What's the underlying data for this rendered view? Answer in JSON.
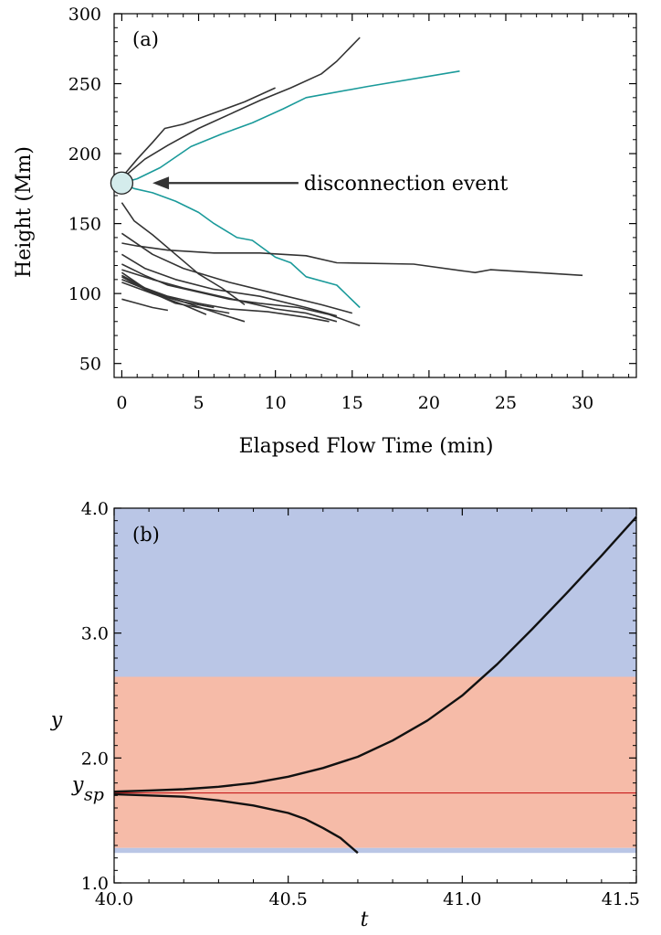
{
  "chart_data": [
    {
      "type": "line",
      "panel_label": "(a)",
      "xlabel": "Elapsed Flow Time (min)",
      "ylabel": "Height (Mm)",
      "xlim": [
        -0.5,
        33.5
      ],
      "ylim": [
        40,
        300
      ],
      "xticks": [
        0,
        5,
        10,
        15,
        20,
        25,
        30
      ],
      "yticks": [
        50,
        100,
        150,
        200,
        250,
        300
      ],
      "grid": false,
      "colors": {
        "dark": "#333333",
        "teal": "#1a9a9a",
        "marker_fill": "#d4ecec"
      },
      "annotation": {
        "text": "disconnection event",
        "arrow_tip": [
          2,
          179
        ],
        "arrow_tail": [
          11.5,
          179
        ]
      },
      "marker": {
        "x": 0,
        "y": 179
      },
      "series": [
        {
          "color": "teal",
          "x": [
            0,
            1,
            2.5,
            4.5,
            6.5,
            8.5,
            10.5,
            12,
            16,
            22
          ],
          "y": [
            179,
            182,
            190,
            205,
            214,
            222,
            232,
            240,
            248,
            259
          ]
        },
        {
          "color": "teal",
          "x": [
            0,
            0.8,
            2,
            3.5,
            5,
            6,
            7.5,
            8.5,
            10,
            11,
            12,
            14,
            15.5
          ],
          "y": [
            179,
            175,
            172,
            166,
            158,
            150,
            140,
            138,
            126,
            122,
            112,
            106,
            90
          ]
        },
        {
          "color": "dark",
          "x": [
            0,
            1.5,
            3,
            5,
            7,
            9,
            11,
            13,
            14,
            15.5
          ],
          "y": [
            182,
            196,
            206,
            218,
            228,
            238,
            247,
            257,
            266,
            283
          ]
        },
        {
          "color": "dark",
          "x": [
            0,
            1,
            2,
            2.8,
            4,
            6.5,
            8,
            10
          ],
          "y": [
            183,
            196,
            208,
            218,
            221,
            231,
            237,
            247
          ]
        },
        {
          "color": "dark",
          "x": [
            0,
            1,
            3,
            6,
            9,
            12,
            14,
            19,
            23,
            24,
            30
          ],
          "y": [
            136,
            134,
            131,
            129,
            129,
            127,
            122,
            121,
            115,
            117,
            113
          ]
        },
        {
          "color": "dark",
          "x": [
            0,
            0.8,
            2,
            3.5,
            5,
            6.5,
            8
          ],
          "y": [
            165,
            152,
            142,
            128,
            114,
            104,
            92
          ]
        },
        {
          "color": "dark",
          "x": [
            0,
            2,
            4,
            7,
            10,
            13,
            15
          ],
          "y": [
            143,
            128,
            118,
            108,
            100,
            92,
            86
          ]
        },
        {
          "color": "dark",
          "x": [
            0,
            1.5,
            3.5,
            6,
            9,
            12,
            14
          ],
          "y": [
            128,
            118,
            110,
            103,
            98,
            90,
            84
          ]
        },
        {
          "color": "dark",
          "x": [
            0,
            1.5,
            3,
            5,
            7,
            9,
            11.5,
            13.5,
            15.5
          ],
          "y": [
            121,
            113,
            106,
            101,
            96,
            93,
            90,
            85,
            77
          ]
        },
        {
          "color": "dark",
          "x": [
            0,
            2,
            4,
            6,
            8,
            10,
            12,
            14
          ],
          "y": [
            117,
            110,
            104,
            99,
            94,
            89,
            86,
            80
          ]
        },
        {
          "color": "dark",
          "x": [
            0,
            1.5,
            3,
            5,
            7,
            9.5,
            12,
            13.5
          ],
          "y": [
            113,
            104,
            98,
            93,
            89,
            87,
            83,
            80
          ]
        },
        {
          "color": "dark",
          "x": [
            0,
            2,
            4,
            5.5
          ],
          "y": [
            115,
            100,
            92,
            85
          ]
        },
        {
          "color": "dark",
          "x": [
            0,
            2,
            4,
            6.5,
            8
          ],
          "y": [
            110,
            101,
            94,
            85,
            80
          ]
        },
        {
          "color": "dark",
          "x": [
            0,
            1.5,
            3.5,
            5.5,
            7
          ],
          "y": [
            112,
            103,
            93,
            89,
            86
          ]
        },
        {
          "color": "dark",
          "x": [
            0,
            1,
            2,
            3
          ],
          "y": [
            96,
            93,
            90,
            88
          ]
        },
        {
          "color": "dark",
          "x": [
            0,
            2,
            4,
            6
          ],
          "y": [
            108,
            100,
            94,
            90
          ]
        }
      ]
    },
    {
      "type": "line",
      "panel_label": "(b)",
      "xlabel": "t",
      "ylabel": "y",
      "special_ytick": {
        "main": "y",
        "sub": "sp",
        "value": 1.72
      },
      "xlim": [
        40.0,
        41.5
      ],
      "ylim": [
        1.0,
        4.0
      ],
      "xticks": [
        40.0,
        40.5,
        41.0,
        41.5
      ],
      "xtick_labels": [
        "40.0",
        "40.5",
        "41.0",
        "41.5"
      ],
      "yticks": [
        1.0,
        2.0,
        3.0,
        4.0
      ],
      "ytick_labels": [
        "1.0",
        "2.0",
        "3.0",
        "4.0"
      ],
      "grid": false,
      "bands": [
        {
          "from": 2.65,
          "to": 4.0,
          "color": "#bac6e6"
        },
        {
          "from": 1.28,
          "to": 2.65,
          "color": "#f6bba8"
        },
        {
          "from": 1.24,
          "to": 1.28,
          "color": "#bac6e6"
        }
      ],
      "hline": {
        "y": 1.72,
        "color": "#c81e1e"
      },
      "series": [
        {
          "color": "#111111",
          "x": [
            40.0,
            40.1,
            40.2,
            40.3,
            40.4,
            40.5,
            40.6,
            40.7,
            40.8,
            40.9,
            41.0,
            41.1,
            41.2,
            41.3,
            41.4,
            41.5
          ],
          "y": [
            1.73,
            1.74,
            1.75,
            1.77,
            1.8,
            1.85,
            1.92,
            2.01,
            2.14,
            2.3,
            2.5,
            2.75,
            3.03,
            3.32,
            3.62,
            3.93
          ]
        },
        {
          "color": "#111111",
          "x": [
            40.0,
            40.1,
            40.2,
            40.3,
            40.4,
            40.5,
            40.55,
            40.6,
            40.65,
            40.7
          ],
          "y": [
            1.71,
            1.7,
            1.69,
            1.66,
            1.62,
            1.56,
            1.51,
            1.44,
            1.36,
            1.24
          ]
        }
      ]
    }
  ]
}
